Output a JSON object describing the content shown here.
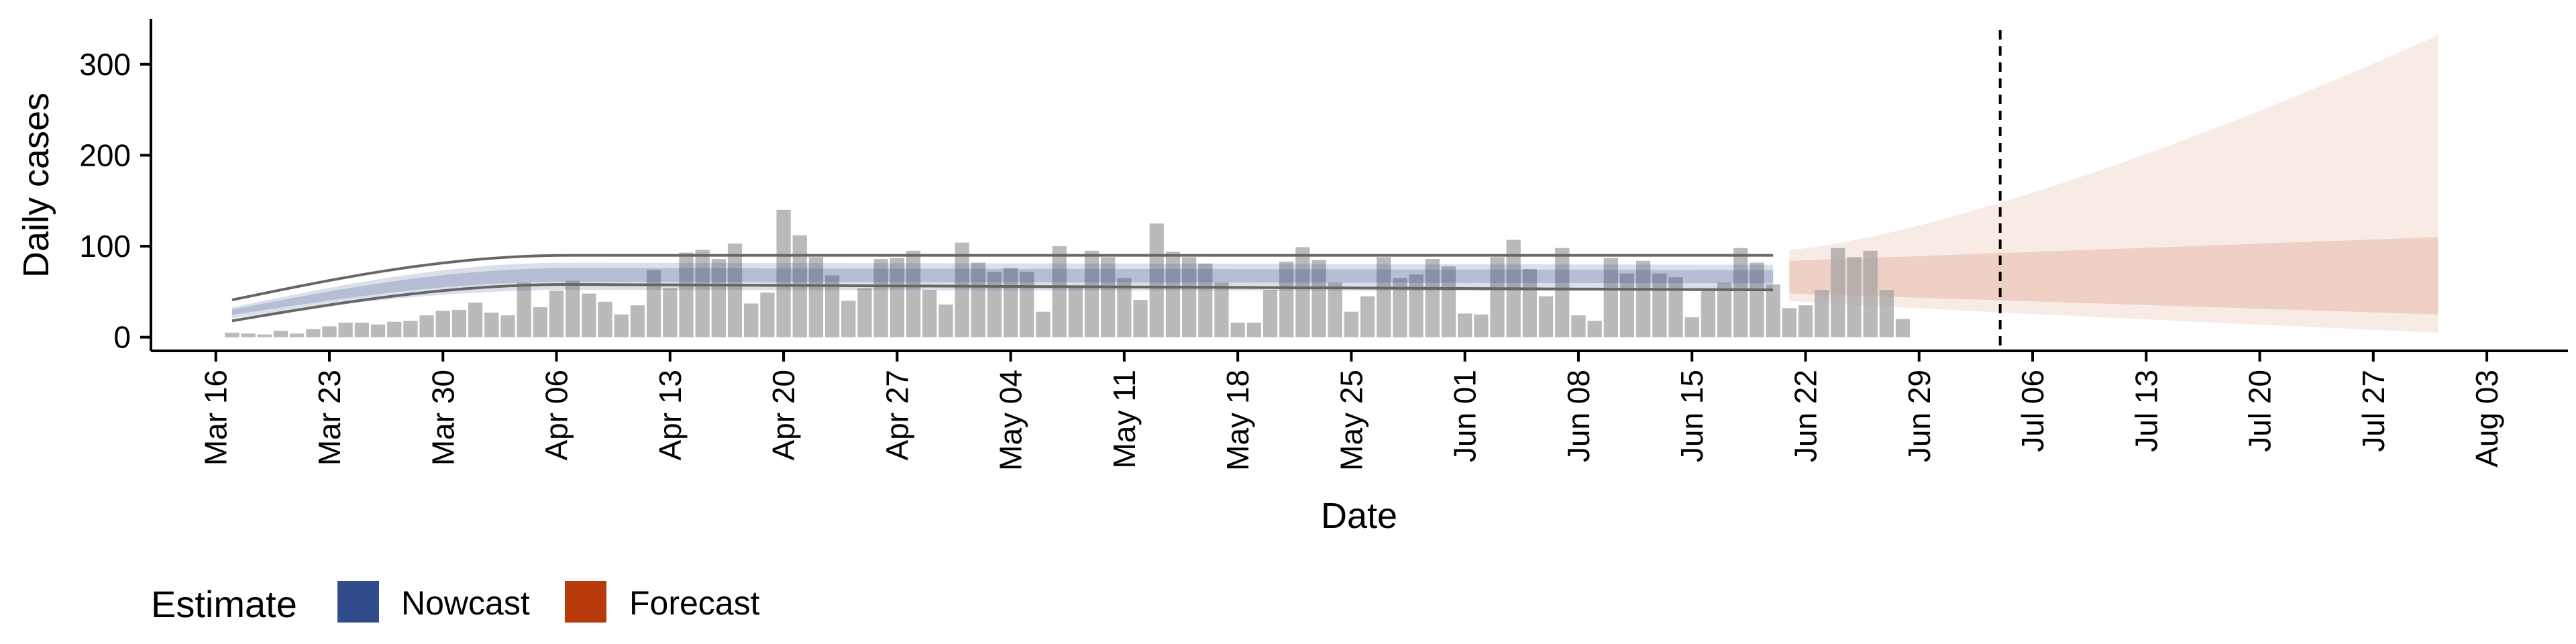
{
  "chart_data": {
    "type": "bar",
    "title": "",
    "xlabel": "Date",
    "ylabel": "Daily cases",
    "ylim": [
      -15,
      350
    ],
    "yticks": [
      0,
      100,
      200,
      300
    ],
    "xlim": [
      "2020-03-12",
      "2020-08-08"
    ],
    "x_tick_labels": [
      "Mar 16",
      "Mar 23",
      "Mar 30",
      "Apr 06",
      "Apr 13",
      "Apr 20",
      "Apr 27",
      "May 04",
      "May 11",
      "May 18",
      "May 25",
      "Jun 01",
      "Jun 08",
      "Jun 15",
      "Jun 22",
      "Jun 29",
      "Jul 06",
      "Jul 13",
      "Jul 20",
      "Jul 27",
      "Aug 03"
    ],
    "x_ticks": [
      "2020-03-16",
      "2020-03-23",
      "2020-03-30",
      "2020-04-06",
      "2020-04-13",
      "2020-04-20",
      "2020-04-27",
      "2020-05-04",
      "2020-05-11",
      "2020-05-18",
      "2020-05-25",
      "2020-06-01",
      "2020-06-08",
      "2020-06-15",
      "2020-06-22",
      "2020-06-29",
      "2020-07-06",
      "2020-07-13",
      "2020-07-20",
      "2020-07-27",
      "2020-08-03"
    ],
    "vline_date": "2020-07-04",
    "grid": false,
    "legend_position": "bottom-left",
    "legend": {
      "title": "Estimate",
      "items": [
        {
          "label": "Nowcast",
          "color": "#324b8c"
        },
        {
          "label": "Forecast",
          "color": "#b83a0a"
        }
      ]
    },
    "bars": {
      "color": "#a3a3a3",
      "start_date": "2020-03-17",
      "values": [
        5,
        4,
        3,
        7,
        4,
        9,
        12,
        16,
        16,
        14,
        17,
        18,
        24,
        29,
        30,
        38,
        27,
        24,
        60,
        33,
        51,
        62,
        48,
        39,
        25,
        35,
        74,
        54,
        93,
        96,
        86,
        103,
        37,
        49,
        140,
        112,
        88,
        68,
        40,
        54,
        86,
        87,
        95,
        52,
        36,
        104,
        82,
        72,
        76,
        72,
        28,
        100,
        56,
        95,
        88,
        65,
        41,
        125,
        94,
        88,
        81,
        60,
        16,
        16,
        52,
        83,
        99,
        85,
        60,
        28,
        45,
        88,
        65,
        69,
        86,
        78,
        26,
        25,
        88,
        107,
        75,
        45,
        98,
        24,
        18,
        87,
        70,
        84,
        70,
        66,
        22,
        54,
        60,
        98,
        82,
        58,
        32,
        35,
        52,
        98,
        88,
        95,
        52,
        20
      ]
    },
    "nowcast": {
      "start_date": "2020-03-17",
      "end_date": "2020-06-20",
      "median_start": 28,
      "median_peak": 70,
      "median_end": 68,
      "inner_band": [
        61,
        76
      ],
      "outer_band": [
        52,
        82
      ],
      "outer_lines": [
        {
          "name": "upper",
          "start": 41,
          "peak": 90,
          "end": 90
        },
        {
          "name": "lower",
          "start": 18,
          "peak": 58,
          "end": 52
        }
      ]
    },
    "forecast": {
      "start_date": "2020-06-21",
      "end_date": "2020-07-31",
      "upper_outer": [
        96,
        332
      ],
      "lower_outer": [
        40,
        5
      ],
      "upper_inner": [
        84,
        110
      ],
      "lower_inner": [
        48,
        25
      ]
    }
  }
}
